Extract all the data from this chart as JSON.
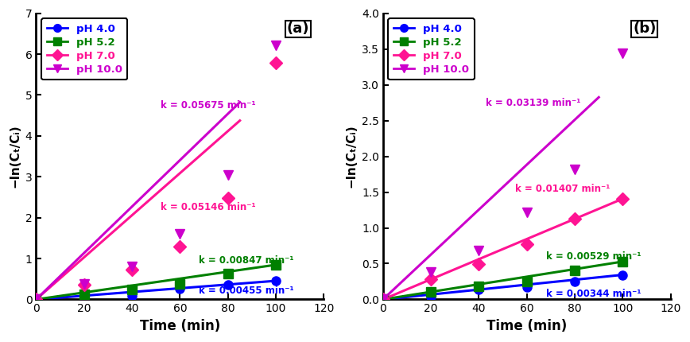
{
  "panel_a": {
    "title": "(a)",
    "xlabel": "Time (min)",
    "ylabel": "-ln(Cₜ/Cᵢ)",
    "xlim": [
      0,
      120
    ],
    "ylim": [
      0,
      7
    ],
    "yticks": [
      0,
      1,
      2,
      3,
      4,
      5,
      6,
      7
    ],
    "xticks": [
      0,
      20,
      40,
      60,
      80,
      100,
      120
    ],
    "series": [
      {
        "label": "pH 4.0",
        "color": "#0000FF",
        "marker": "o",
        "x": [
          0,
          20,
          40,
          60,
          80,
          100
        ],
        "y": [
          0.0,
          0.05,
          0.09,
          0.27,
          0.36,
          0.455
        ],
        "k": 0.00455,
        "k_label": "k = 0.00455 min⁻¹",
        "k_x": 68,
        "k_y": 0.22,
        "k_color": "#0000FF",
        "fit_x": [
          0,
          100
        ]
      },
      {
        "label": "pH 5.2",
        "color": "#008000",
        "marker": "s",
        "x": [
          0,
          20,
          40,
          60,
          80,
          100
        ],
        "y": [
          0.0,
          0.12,
          0.24,
          0.38,
          0.64,
          0.847
        ],
        "k": 0.00847,
        "k_label": "k = 0.00847 min⁻¹",
        "k_x": 68,
        "k_y": 0.95,
        "k_color": "#008000",
        "fit_x": [
          0,
          100
        ]
      },
      {
        "label": "pH 7.0",
        "color": "#FF1493",
        "marker": "D",
        "x": [
          0,
          20,
          40,
          60,
          80,
          100
        ],
        "y": [
          0.0,
          0.35,
          0.73,
          1.3,
          2.47,
          5.78
        ],
        "k": 0.05146,
        "k_label": "k = 0.05146 min⁻¹",
        "k_x": 52,
        "k_y": 2.25,
        "k_color": "#FF1493",
        "fit_x": [
          0,
          85
        ]
      },
      {
        "label": "pH 10.0",
        "color": "#CC00CC",
        "marker": "v",
        "x": [
          0,
          20,
          40,
          60,
          80,
          100
        ],
        "y": [
          0.0,
          0.38,
          0.8,
          1.6,
          3.05,
          6.22
        ],
        "k": 0.05675,
        "k_label": "k = 0.05675 min⁻¹",
        "k_x": 52,
        "k_y": 4.75,
        "k_color": "#CC00CC",
        "fit_x": [
          0,
          85
        ]
      }
    ]
  },
  "panel_b": {
    "title": "(b)",
    "xlabel": "Time (min)",
    "ylabel": "-ln(Cₜ/Cᵢ)",
    "xlim": [
      0,
      120
    ],
    "ylim": [
      0,
      4.0
    ],
    "yticks": [
      0,
      0.5,
      1.0,
      1.5,
      2.0,
      2.5,
      3.0,
      3.5,
      4.0
    ],
    "xticks": [
      0,
      20,
      40,
      60,
      80,
      100,
      120
    ],
    "series": [
      {
        "label": "pH 4.0",
        "color": "#0000FF",
        "marker": "o",
        "x": [
          0,
          20,
          40,
          60,
          80,
          100
        ],
        "y": [
          0.0,
          0.04,
          0.14,
          0.17,
          0.245,
          0.344
        ],
        "k": 0.00344,
        "k_label": "k = 0.00344 min⁻¹",
        "k_x": 68,
        "k_y": 0.08,
        "k_color": "#0000FF",
        "fit_x": [
          0,
          100
        ]
      },
      {
        "label": "pH 5.2",
        "color": "#008000",
        "marker": "s",
        "x": [
          0,
          20,
          40,
          60,
          80,
          100
        ],
        "y": [
          0.0,
          0.1,
          0.18,
          0.25,
          0.41,
          0.529
        ],
        "k": 0.00529,
        "k_label": "k = 0.00529 min⁻¹",
        "k_x": 68,
        "k_y": 0.6,
        "k_color": "#008000",
        "fit_x": [
          0,
          100
        ]
      },
      {
        "label": "pH 7.0",
        "color": "#FF1493",
        "marker": "D",
        "x": [
          0,
          20,
          40,
          60,
          80,
          100
        ],
        "y": [
          0.0,
          0.28,
          0.49,
          0.77,
          1.13,
          1.407
        ],
        "k": 0.01407,
        "k_label": "k = 0.01407 min⁻¹",
        "k_x": 55,
        "k_y": 1.55,
        "k_color": "#FF1493",
        "fit_x": [
          0,
          100
        ]
      },
      {
        "label": "pH 10.0",
        "color": "#CC00CC",
        "marker": "v",
        "x": [
          0,
          20,
          40,
          60,
          80,
          100
        ],
        "y": [
          0.0,
          0.38,
          0.68,
          1.22,
          1.82,
          3.44
        ],
        "k": 0.03139,
        "k_label": "k = 0.03139 min⁻¹",
        "k_x": 43,
        "k_y": 2.75,
        "k_color": "#CC00CC",
        "fit_x": [
          0,
          90
        ]
      }
    ]
  },
  "legend_labels": [
    "pH 4.0",
    "pH 5.2",
    "pH 7.0",
    "pH 10.0"
  ],
  "legend_colors": [
    "#0000FF",
    "#008000",
    "#FF1493",
    "#CC00CC"
  ],
  "legend_markers": [
    "o",
    "s",
    "D",
    "v"
  ],
  "background_color": "#ffffff"
}
